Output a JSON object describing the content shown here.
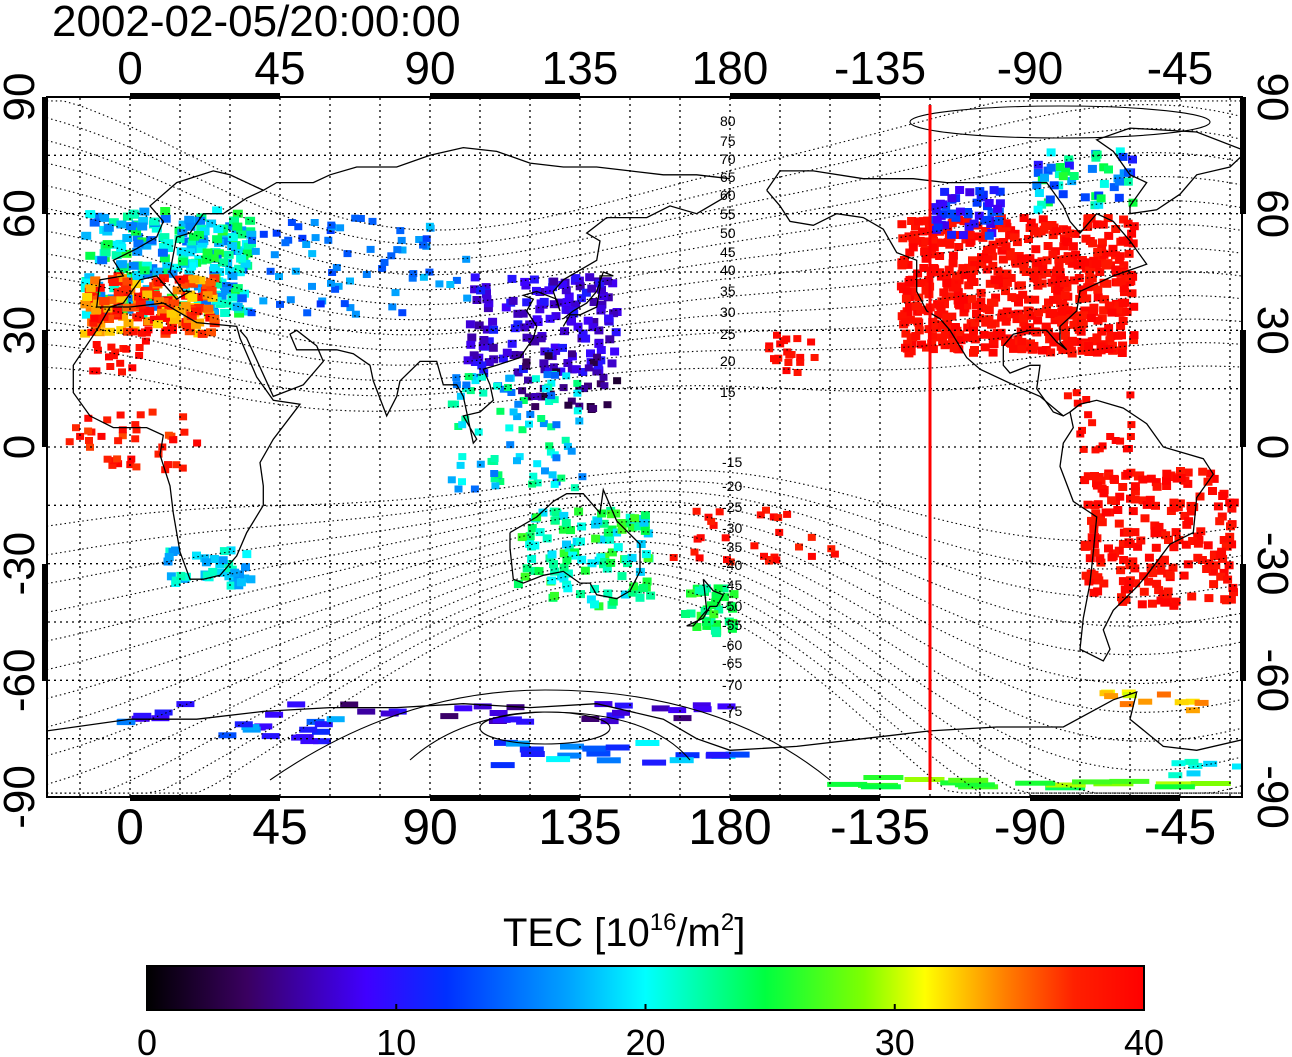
{
  "title": "2002-02-05/20:00:00",
  "top_lon_ticks": [
    "0",
    "45",
    "90",
    "135",
    "180",
    "-135",
    "-90",
    "-45"
  ],
  "bottom_lon_ticks": [
    "0",
    "45",
    "90",
    "135",
    "180",
    "-135",
    "-90",
    "-45"
  ],
  "left_lat_ticks": [
    "90",
    "60",
    "30",
    "0",
    "-30",
    "-60",
    "-90"
  ],
  "right_lat_ticks": [
    "90",
    "60",
    "30",
    "0",
    "-30",
    "-60",
    "-90"
  ],
  "contour_labels_north": [
    "80",
    "75",
    "70",
    "65",
    "60",
    "55",
    "50",
    "45",
    "40",
    "35",
    "30",
    "25",
    "20",
    "15"
  ],
  "contour_labels_south": [
    "-15",
    "-20",
    "-25",
    "-30",
    "-35",
    "-40",
    "-45",
    "-50",
    "-55",
    "-60",
    "-65",
    "-70",
    "-75"
  ],
  "colorbar": {
    "label_main": "TEC  [10",
    "label_exp1": "16",
    "label_mid": "/m",
    "label_exp2": "2",
    "label_end": "]",
    "ticks": [
      "0",
      "10",
      "20",
      "30",
      "40"
    ],
    "range": [
      0,
      40
    ]
  },
  "map": {
    "lon_range_deg": [
      -25,
      335
    ],
    "lat_range_deg": [
      -90,
      90
    ],
    "terminator_line": {
      "longitude": -120,
      "color": "#ff0000"
    }
  },
  "colors": {
    "frame": "#000000",
    "grid": "#000000",
    "terminator": "#ff0000"
  },
  "tec_regions": [
    {
      "region": "Europe",
      "value": 22
    },
    {
      "region": "Iberia / France",
      "value": 38
    },
    {
      "region": "Central Asia",
      "value": 14
    },
    {
      "region": "East Asia / Japan",
      "value": 9
    },
    {
      "region": "SE Asia",
      "value": 18
    },
    {
      "region": "Australia",
      "value": 23
    },
    {
      "region": "New Zealand",
      "value": 24
    },
    {
      "region": "North America",
      "value": 40
    },
    {
      "region": "South America",
      "value": 40
    },
    {
      "region": "Southern Africa",
      "value": 18
    },
    {
      "region": "Antarctica",
      "value": 12
    }
  ]
}
